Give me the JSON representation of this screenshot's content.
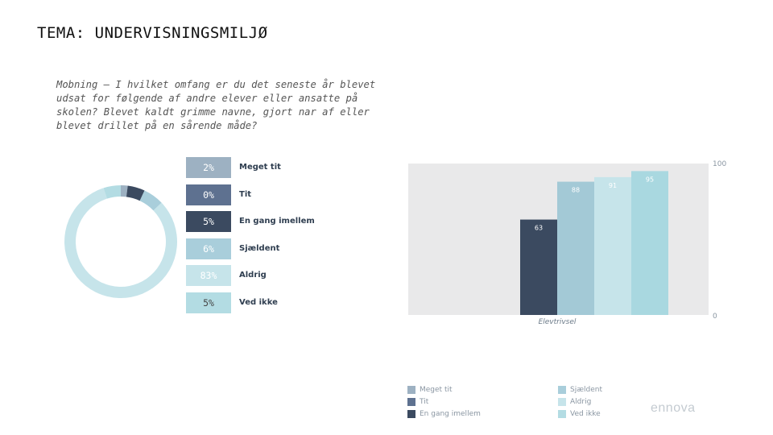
{
  "page": {
    "title": "TEMA: UNDERVISNINGSMILJØ",
    "question": "Mobning – I hvilket omfang er du det seneste år blevet udsat for følgende af andre elever eller ansatte på skolen? Blevet kaldt grimme navne, gjort nar af eller blevet drillet på en sårende måde?",
    "logo": "ennova"
  },
  "chart_data": [
    {
      "type": "pie",
      "donut": true,
      "categories": [
        "Meget tit",
        "Tit",
        "En gang imellem",
        "Sjældent",
        "Aldrig",
        "Ved ikke"
      ],
      "values": [
        2,
        0,
        5,
        6,
        83,
        5
      ],
      "labels": [
        "2%",
        "0%",
        "5%",
        "6%",
        "83%",
        "5%"
      ],
      "colors": [
        "#9db1c2",
        "#5e7190",
        "#3b4a60",
        "#a9cedb",
        "#c6e4ea",
        "#b3dce3"
      ],
      "label_colors": [
        "#ffffff",
        "#ffffff",
        "#ffffff",
        "#ffffff",
        "#ffffff",
        "#444444"
      ]
    },
    {
      "type": "bar",
      "stacked": false,
      "categories": [
        "Elevtrivsel"
      ],
      "series": [
        {
          "name": "En gang imellem",
          "values": [
            63
          ],
          "color": "#3b4a60"
        },
        {
          "name": "Sjældent",
          "values": [
            88
          ],
          "color": "#a3c9d6"
        },
        {
          "name": "Aldrig",
          "values": [
            91
          ],
          "color": "#c6e4ea"
        },
        {
          "name": "Ved ikke",
          "values": [
            95
          ],
          "color": "#a9d8e0"
        }
      ],
      "ylim": [
        0,
        100
      ],
      "y_tick_labels": [
        "0",
        "100"
      ],
      "grid": false,
      "legend": {
        "position": "bottom",
        "entries": [
          {
            "name": "Meget tit",
            "color": "#9db1c2"
          },
          {
            "name": "Tit",
            "color": "#5e7190"
          },
          {
            "name": "En gang imellem",
            "color": "#3b4a60"
          },
          {
            "name": "Sjældent",
            "color": "#a9cedb"
          },
          {
            "name": "Aldrig",
            "color": "#c6e4ea"
          },
          {
            "name": "Ved ikke",
            "color": "#b3dce3"
          }
        ]
      }
    }
  ]
}
